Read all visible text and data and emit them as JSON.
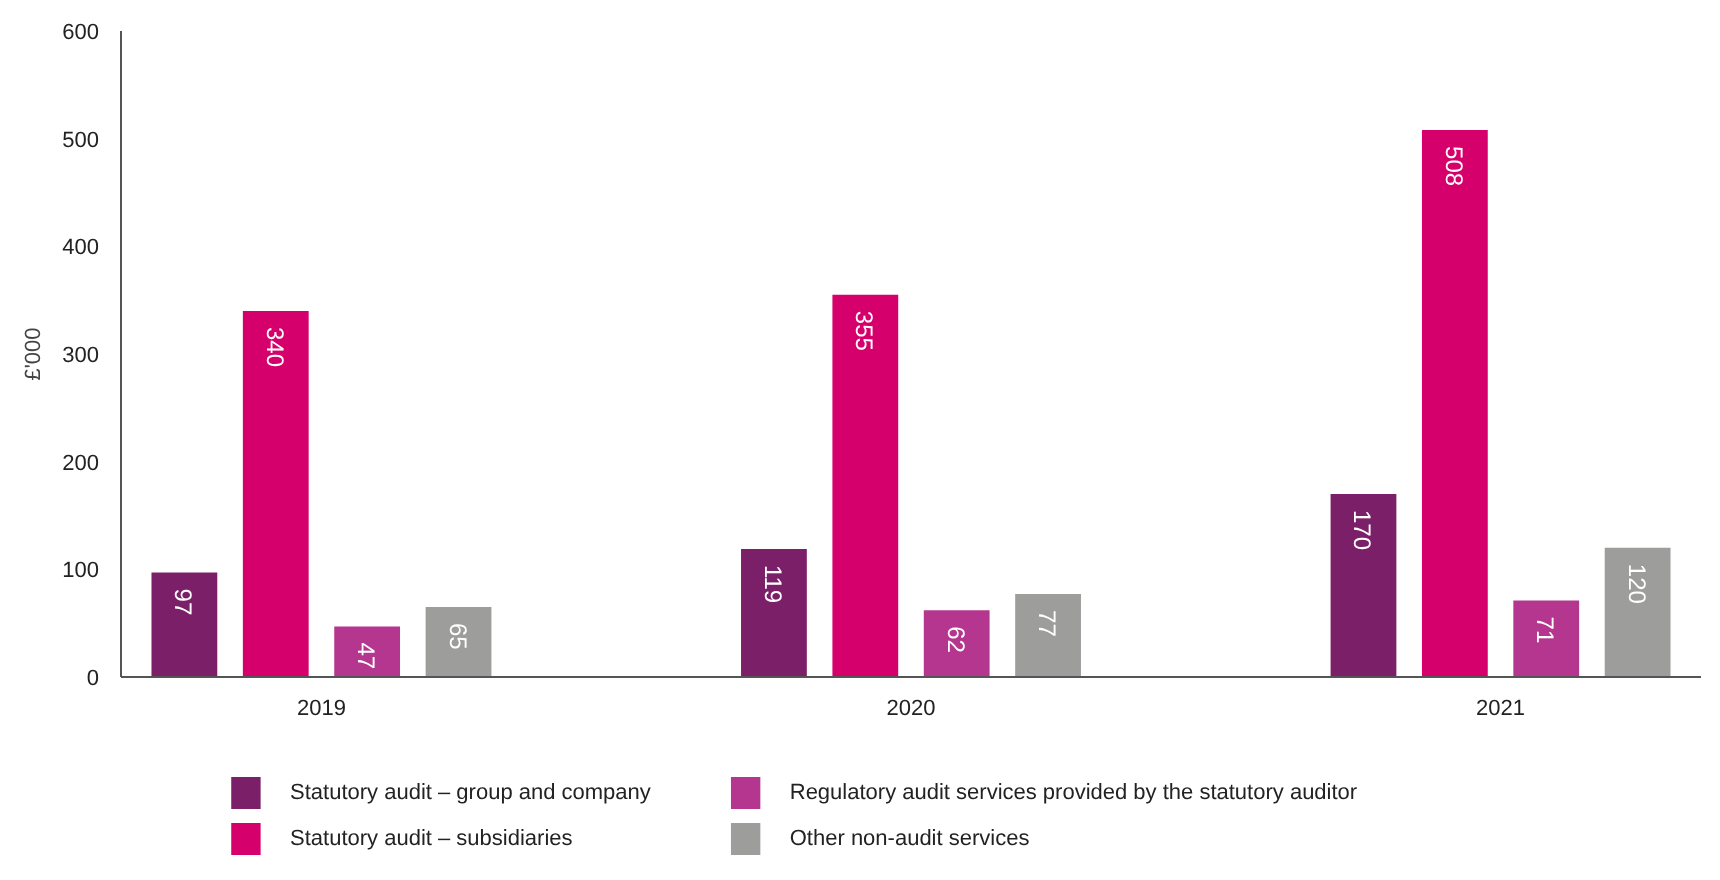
{
  "chart_data": {
    "type": "bar",
    "ylabel": "£'000",
    "categories": [
      "2019",
      "2020",
      "2021"
    ],
    "series": [
      {
        "name": "Statutory audit – group and company",
        "color": "#7b2068",
        "values": [
          97,
          119,
          170
        ]
      },
      {
        "name": "Statutory audit – subsidiaries",
        "color": "#d6006d",
        "values": [
          340,
          355,
          508
        ]
      },
      {
        "name": "Regulatory audit services provided by the statutory auditor",
        "color": "#b5368f",
        "values": [
          47,
          62,
          71
        ]
      },
      {
        "name": "Other non-audit services",
        "color": "#9d9d9c",
        "values": [
          65,
          77,
          120
        ]
      }
    ],
    "ylim": [
      0,
      600
    ],
    "yticks": [
      0,
      100,
      200,
      300,
      400,
      500,
      600
    ],
    "grid": false,
    "legend": "bottom",
    "data_labels": true
  }
}
